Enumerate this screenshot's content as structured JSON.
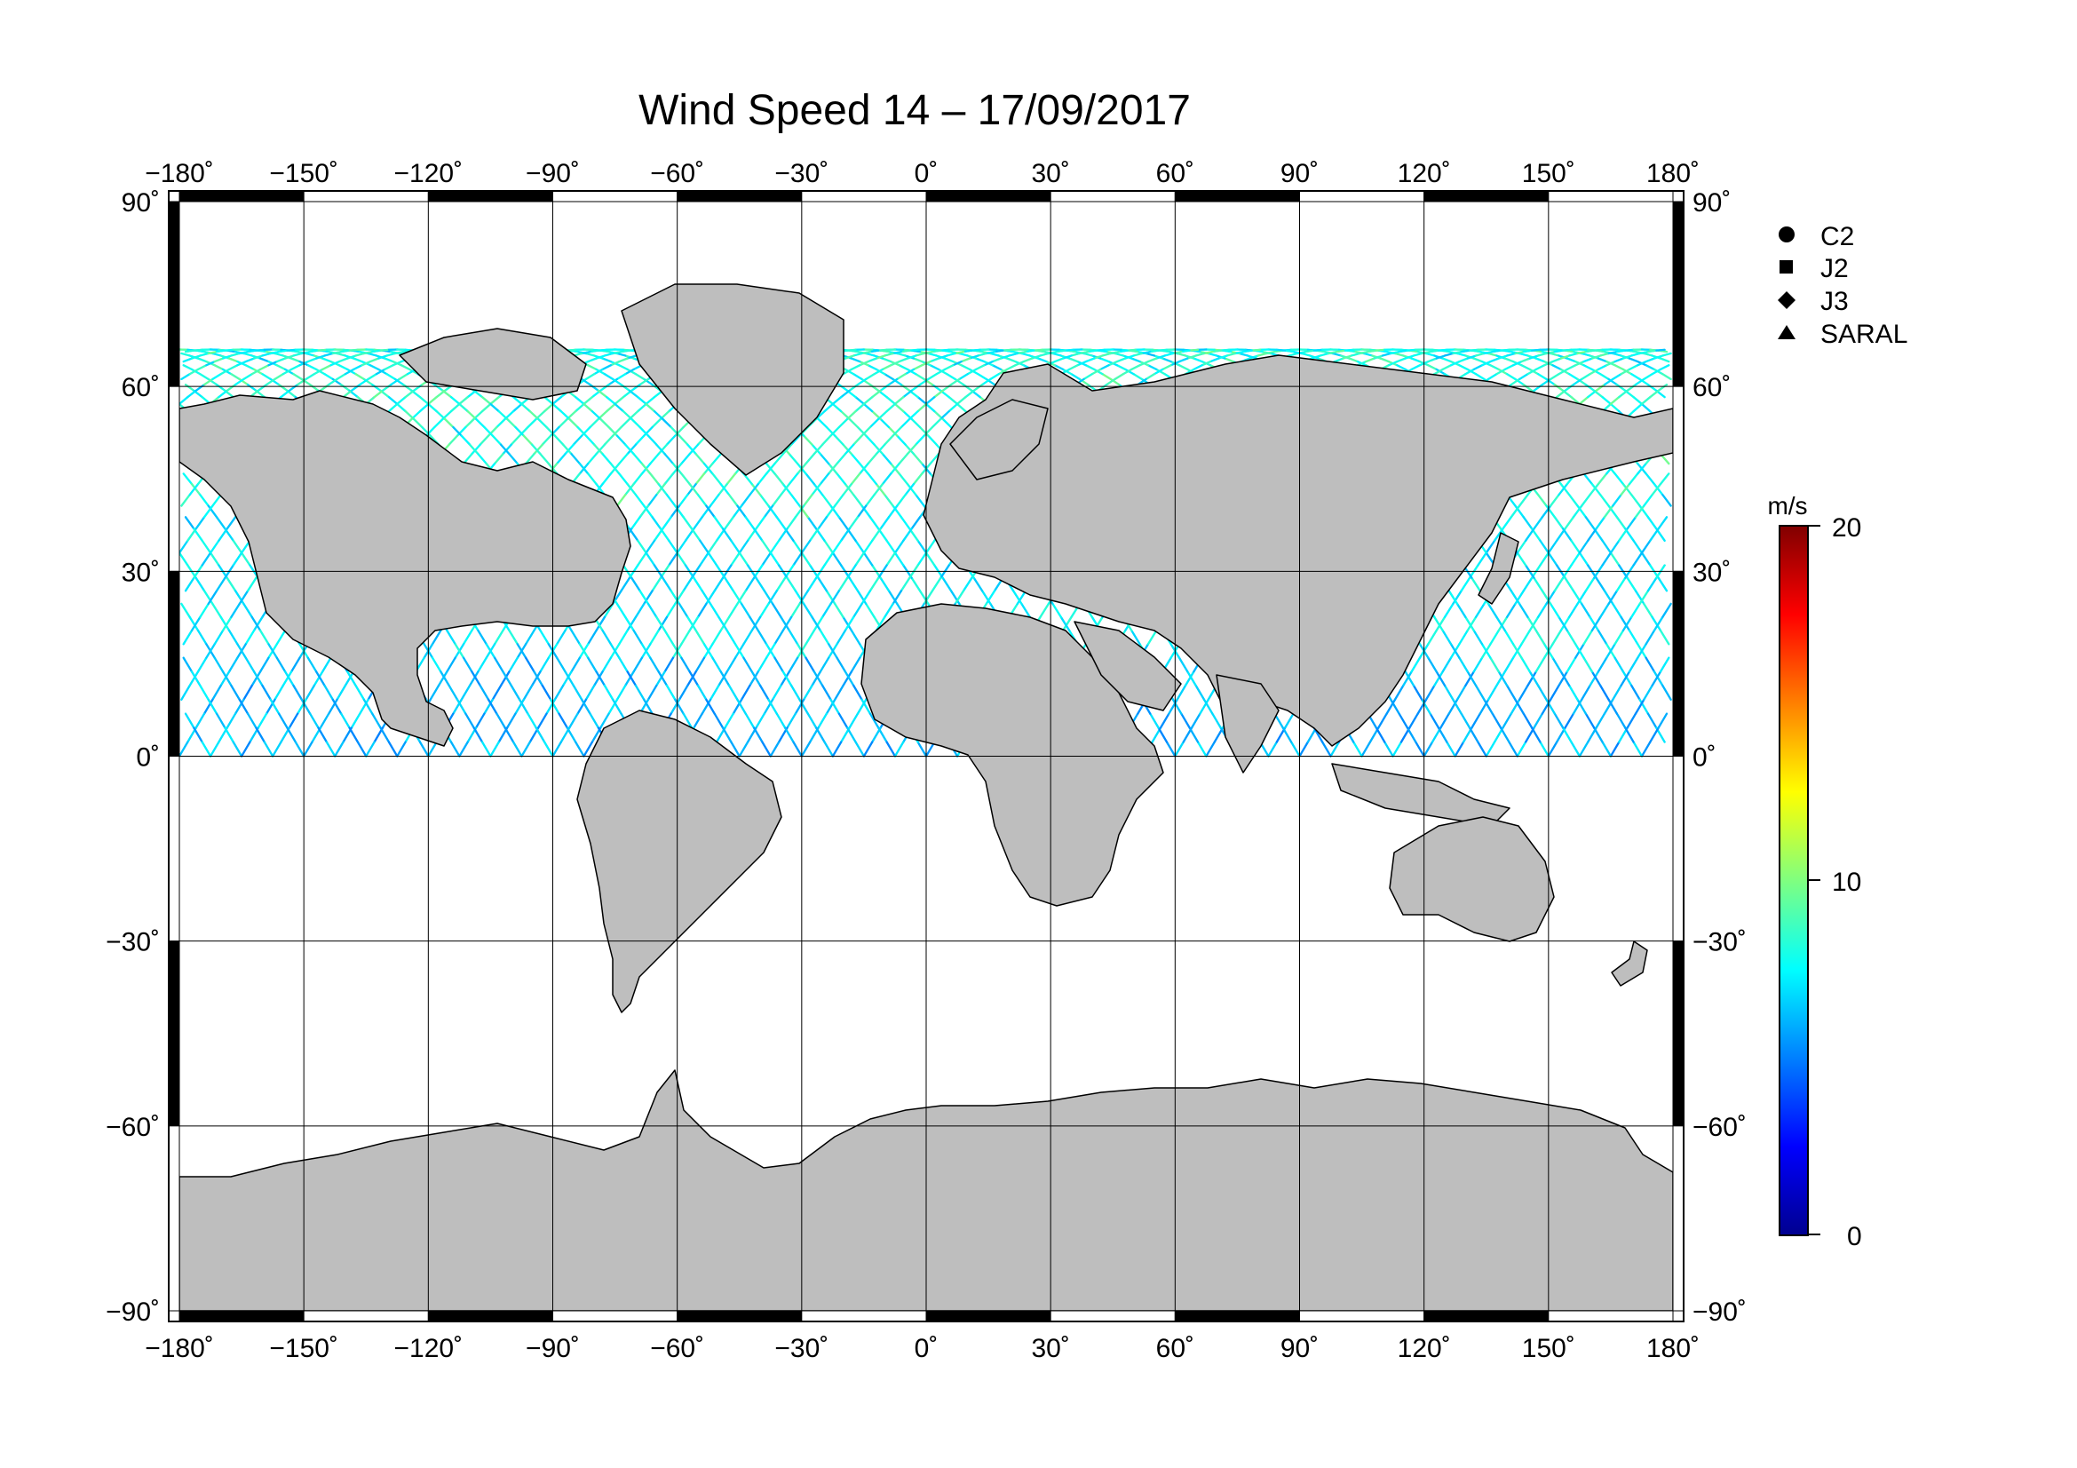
{
  "title": "Wind Speed 14 – 17/09/2017",
  "axes": {
    "x_ticks": [
      "−180˚",
      "−150˚",
      "−120˚",
      "−90˚",
      "−60˚",
      "−30˚",
      "0˚",
      "30˚",
      "60˚",
      "90˚",
      "120˚",
      "150˚",
      "180˚"
    ],
    "y_ticks": [
      "90˚",
      "60˚",
      "30˚",
      "0˚",
      "−30˚",
      "−60˚",
      "−90˚"
    ],
    "x_range": [
      -180,
      180
    ],
    "y_range": [
      -90,
      90
    ],
    "grid": true
  },
  "legend": {
    "placement": "top-right",
    "items": [
      {
        "symbol": "circle",
        "label": "C2"
      },
      {
        "symbol": "square",
        "label": "J2"
      },
      {
        "symbol": "diamond",
        "label": "J3"
      },
      {
        "symbol": "triangle",
        "label": "SARAL"
      }
    ]
  },
  "colorbar": {
    "unit": "m/s",
    "ticks": [
      "20",
      "10",
      "0"
    ],
    "range": [
      0,
      20
    ],
    "colormap": "jet"
  },
  "colors": {
    "land": "#bebebe",
    "ocean": "#ffffff",
    "coast": "#000000"
  }
}
